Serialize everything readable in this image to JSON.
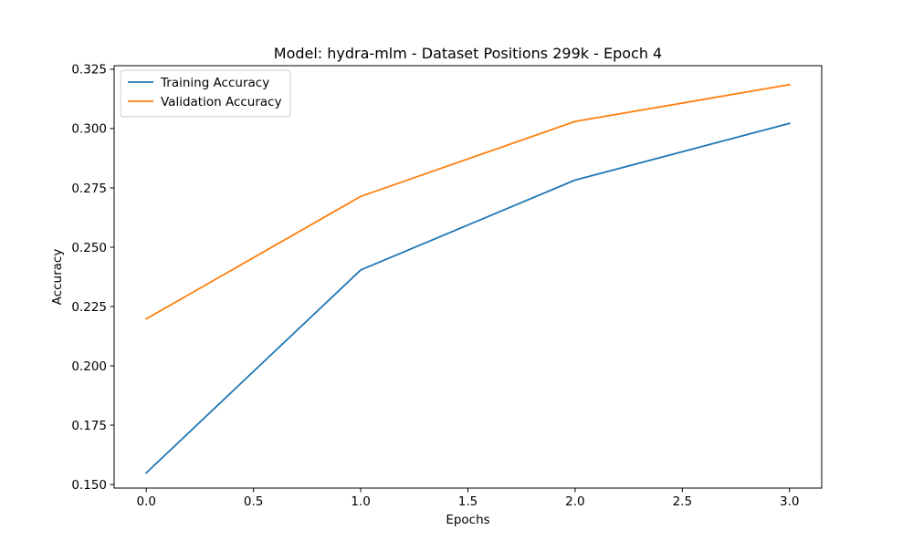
{
  "chart_data": {
    "type": "line",
    "title": "Model: hydra-mlm - Dataset Positions 299k - Epoch 4",
    "xlabel": "Epochs",
    "ylabel": "Accuracy",
    "xlim": [
      -0.15,
      3.15
    ],
    "ylim": [
      0.1485,
      0.3265
    ],
    "xticks": [
      0.0,
      0.5,
      1.0,
      1.5,
      2.0,
      2.5,
      3.0
    ],
    "xtick_labels": [
      "0.0",
      "0.5",
      "1.0",
      "1.5",
      "2.0",
      "2.5",
      "3.0"
    ],
    "yticks": [
      0.15,
      0.175,
      0.2,
      0.225,
      0.25,
      0.275,
      0.3,
      0.325
    ],
    "ytick_labels": [
      "0.150",
      "0.175",
      "0.200",
      "0.225",
      "0.250",
      "0.275",
      "0.300",
      "0.325"
    ],
    "x": [
      0,
      1,
      2,
      3
    ],
    "series": [
      {
        "name": "Training Accuracy",
        "color": "#1f77b4",
        "values": [
          0.1549,
          0.2404,
          0.2783,
          0.3022
        ]
      },
      {
        "name": "Validation Accuracy",
        "color": "#ff7f0e",
        "values": [
          0.2198,
          0.2714,
          0.303,
          0.3185
        ]
      }
    ],
    "grid": false,
    "legend_position": "upper-left"
  }
}
